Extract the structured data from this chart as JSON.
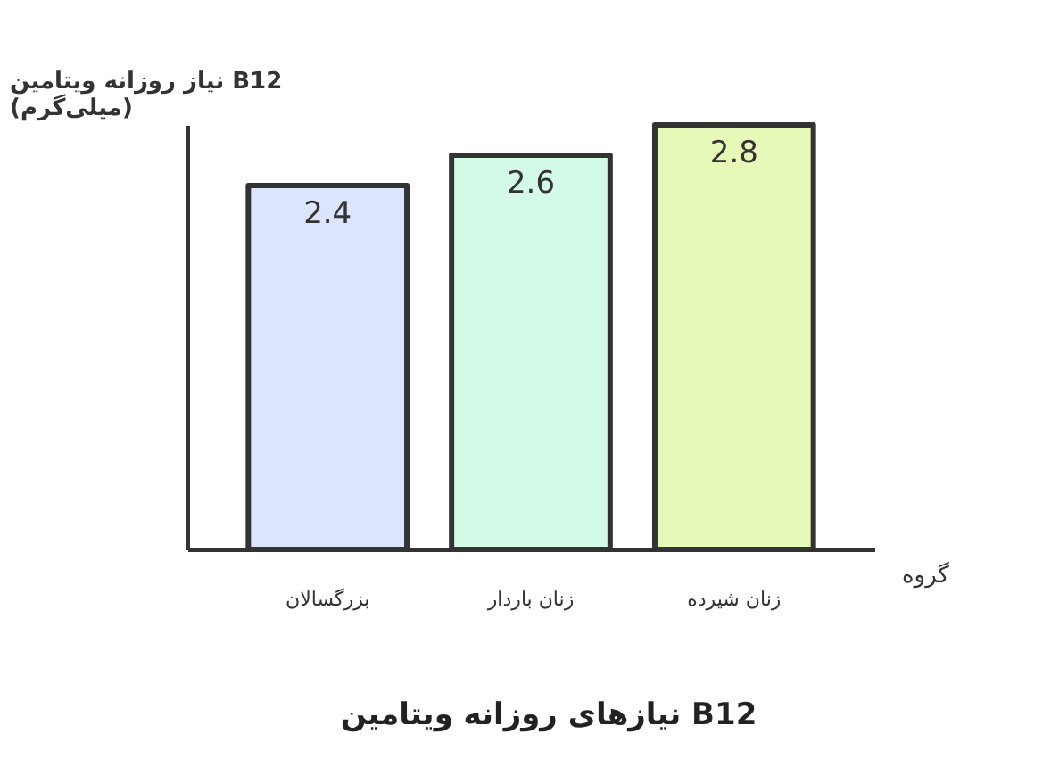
{
  "chart_data": {
    "type": "bar",
    "title": "نیازهای روزانه ویتامین B12",
    "ylabel": "نیاز روزانه ویتامین B12\n(میلی‌گرم)",
    "xlabel": "گروه",
    "categories": [
      "بزرگسالان",
      "زنان باردار",
      "زنان شیرده"
    ],
    "values": [
      2.4,
      2.6,
      2.8
    ],
    "colors": [
      "#dbe5fb",
      "#d4fbe7",
      "#e7f9b8"
    ],
    "data_labels": true
  }
}
